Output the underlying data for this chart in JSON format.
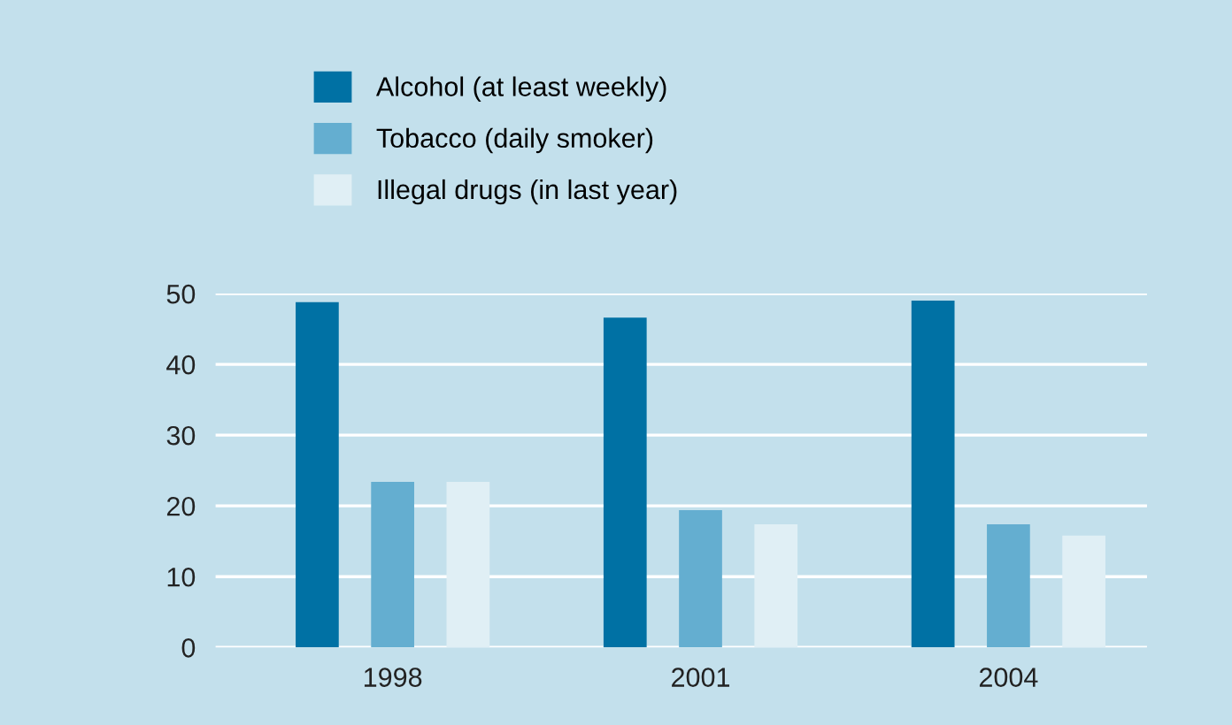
{
  "chart_data": {
    "type": "bar",
    "categories": [
      "1998",
      "2001",
      "2004"
    ],
    "series": [
      {
        "name": "Alcohol (at least weekly)",
        "color": "#0071a4",
        "values": [
          48.8,
          46.6,
          49.0
        ]
      },
      {
        "name": "Tobacco (daily smoker)",
        "color": "#64aed0",
        "values": [
          23.4,
          19.4,
          17.4
        ]
      },
      {
        "name": "Illegal drugs (in last year)",
        "color": "#e0eff5",
        "values": [
          23.4,
          17.4,
          15.8
        ]
      }
    ],
    "ylim": [
      0,
      50
    ],
    "yticks": [
      0,
      10,
      20,
      30,
      40,
      50
    ],
    "grid": "y",
    "legend": "top left"
  }
}
